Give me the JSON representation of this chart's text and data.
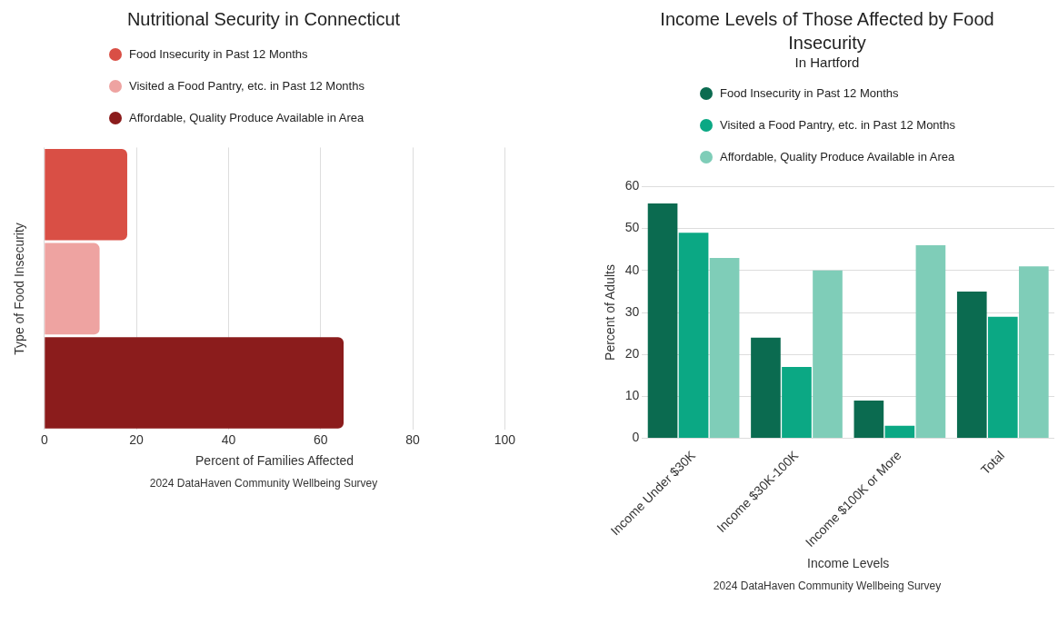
{
  "chart_data": [
    {
      "type": "bar",
      "title": "Nutritional Security in Connecticut",
      "orientation": "horizontal",
      "xlabel": "Percent of Families Affected",
      "ylabel": "Type of Food Insecurity",
      "categories": [
        null
      ],
      "series": [
        {
          "name": "Food Insecurity in Past 12 Months",
          "color": "#d94f45",
          "values": [
            18
          ]
        },
        {
          "name": "Visited a Food Pantry, etc. in Past 12 Months",
          "color": "#eea3a1",
          "values": [
            12
          ]
        },
        {
          "name": "Affordable, Quality Produce Available in Area",
          "color": "#8b1c1c",
          "values": [
            65
          ]
        }
      ],
      "xlim": [
        0,
        100
      ],
      "xticks": [
        0,
        20,
        40,
        60,
        80,
        100
      ],
      "grid": "x",
      "legend": "top",
      "annotations": [
        "2024 DataHaven Community Wellbeing Survey"
      ]
    },
    {
      "type": "bar",
      "title": "Income Levels of Those Affected by Food Insecurity",
      "subtitle": "In Hartford",
      "xlabel": "Income Levels",
      "ylabel": "Percent of Adults",
      "categories": [
        "Income Under $30K",
        "Income $30K-100K",
        "Income $100K or More",
        "Total"
      ],
      "series": [
        {
          "name": "Food Insecurity in Past 12 Months",
          "color": "#0b6b50",
          "values": [
            56,
            24,
            9,
            35
          ]
        },
        {
          "name": "Visited a Food Pantry, etc. in Past 12 Months",
          "color": "#0ba884",
          "values": [
            49,
            17,
            3,
            29
          ]
        },
        {
          "name": "Affordable, Quality Produce Available in Area",
          "color": "#7fcdb8",
          "values": [
            43,
            40,
            46,
            41
          ]
        }
      ],
      "ylim": [
        0,
        60
      ],
      "yticks": [
        0,
        10,
        20,
        30,
        40,
        50,
        60
      ],
      "grid": "y",
      "legend": "top",
      "annotations": [
        "2024 DataHaven Community Wellbeing Survey"
      ]
    }
  ]
}
